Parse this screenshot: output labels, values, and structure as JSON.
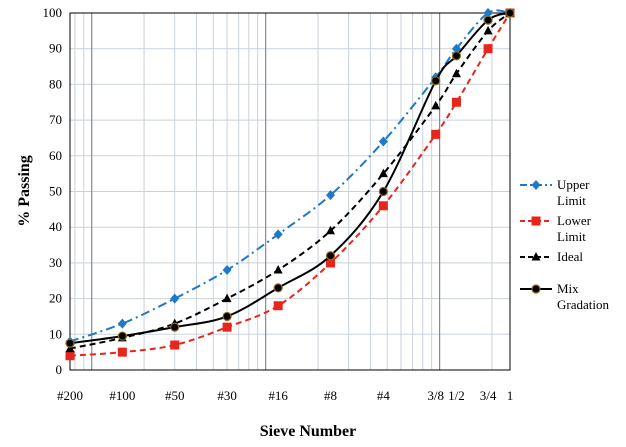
{
  "chart_data": {
    "type": "line",
    "title": "",
    "xlabel": "Sieve Number",
    "ylabel": "% Passing",
    "ylim": [
      0,
      100
    ],
    "yticks": [
      0,
      10,
      20,
      30,
      40,
      50,
      60,
      70,
      80,
      90,
      100
    ],
    "x_scale": "log",
    "x_unit": "mm",
    "xlim_mm": [
      0.075,
      25.4
    ],
    "x_ticks": [
      {
        "label": "#200",
        "size_mm": 0.075
      },
      {
        "label": "#100",
        "size_mm": 0.15
      },
      {
        "label": "#50",
        "size_mm": 0.3
      },
      {
        "label": "#30",
        "size_mm": 0.6
      },
      {
        "label": "#16",
        "size_mm": 1.18
      },
      {
        "label": "#8",
        "size_mm": 2.36
      },
      {
        "label": "#4",
        "size_mm": 4.75
      },
      {
        "label": "3/8",
        "size_mm": 9.5
      },
      {
        "label": "1/2",
        "size_mm": 12.5
      },
      {
        "label": "3/4",
        "size_mm": 19.0
      },
      {
        "label": "1",
        "size_mm": 25.4
      }
    ],
    "grid": true,
    "legend_position": "right",
    "series": [
      {
        "name": "Upper Limit",
        "color": "#1f78c8",
        "dash": "dash-dot",
        "marker": "diamond",
        "x": [
          0.075,
          0.15,
          0.3,
          0.6,
          1.18,
          2.36,
          4.75,
          9.5,
          12.5,
          19.0,
          25.4
        ],
        "values": [
          8,
          13,
          20,
          28,
          38,
          49,
          64,
          82,
          90,
          100,
          100
        ]
      },
      {
        "name": "Lower Limit",
        "color": "#e8251b",
        "dash": "dash",
        "marker": "square",
        "x": [
          0.075,
          0.15,
          0.3,
          0.6,
          1.18,
          2.36,
          4.75,
          9.5,
          12.5,
          19.0,
          25.4
        ],
        "values": [
          4,
          5,
          7,
          12,
          18,
          30,
          46,
          66,
          75,
          90,
          100
        ]
      },
      {
        "name": "Ideal",
        "color": "#000000",
        "dash": "dash",
        "marker": "triangle",
        "x": [
          0.075,
          0.15,
          0.3,
          0.6,
          1.18,
          2.36,
          4.75,
          9.5,
          12.5,
          19.0,
          25.4
        ],
        "values": [
          6,
          9,
          13,
          20,
          28,
          39,
          55,
          74,
          83,
          95,
          100
        ]
      },
      {
        "name": "Mix Gradation",
        "color": "#000000",
        "dash": "solid",
        "marker": "circle",
        "x": [
          0.075,
          0.15,
          0.3,
          0.6,
          1.18,
          2.36,
          4.75,
          9.5,
          12.5,
          19.0,
          25.4
        ],
        "values": [
          7.5,
          9.5,
          12,
          15,
          23,
          32,
          50,
          81,
          88,
          98,
          100
        ]
      }
    ]
  }
}
